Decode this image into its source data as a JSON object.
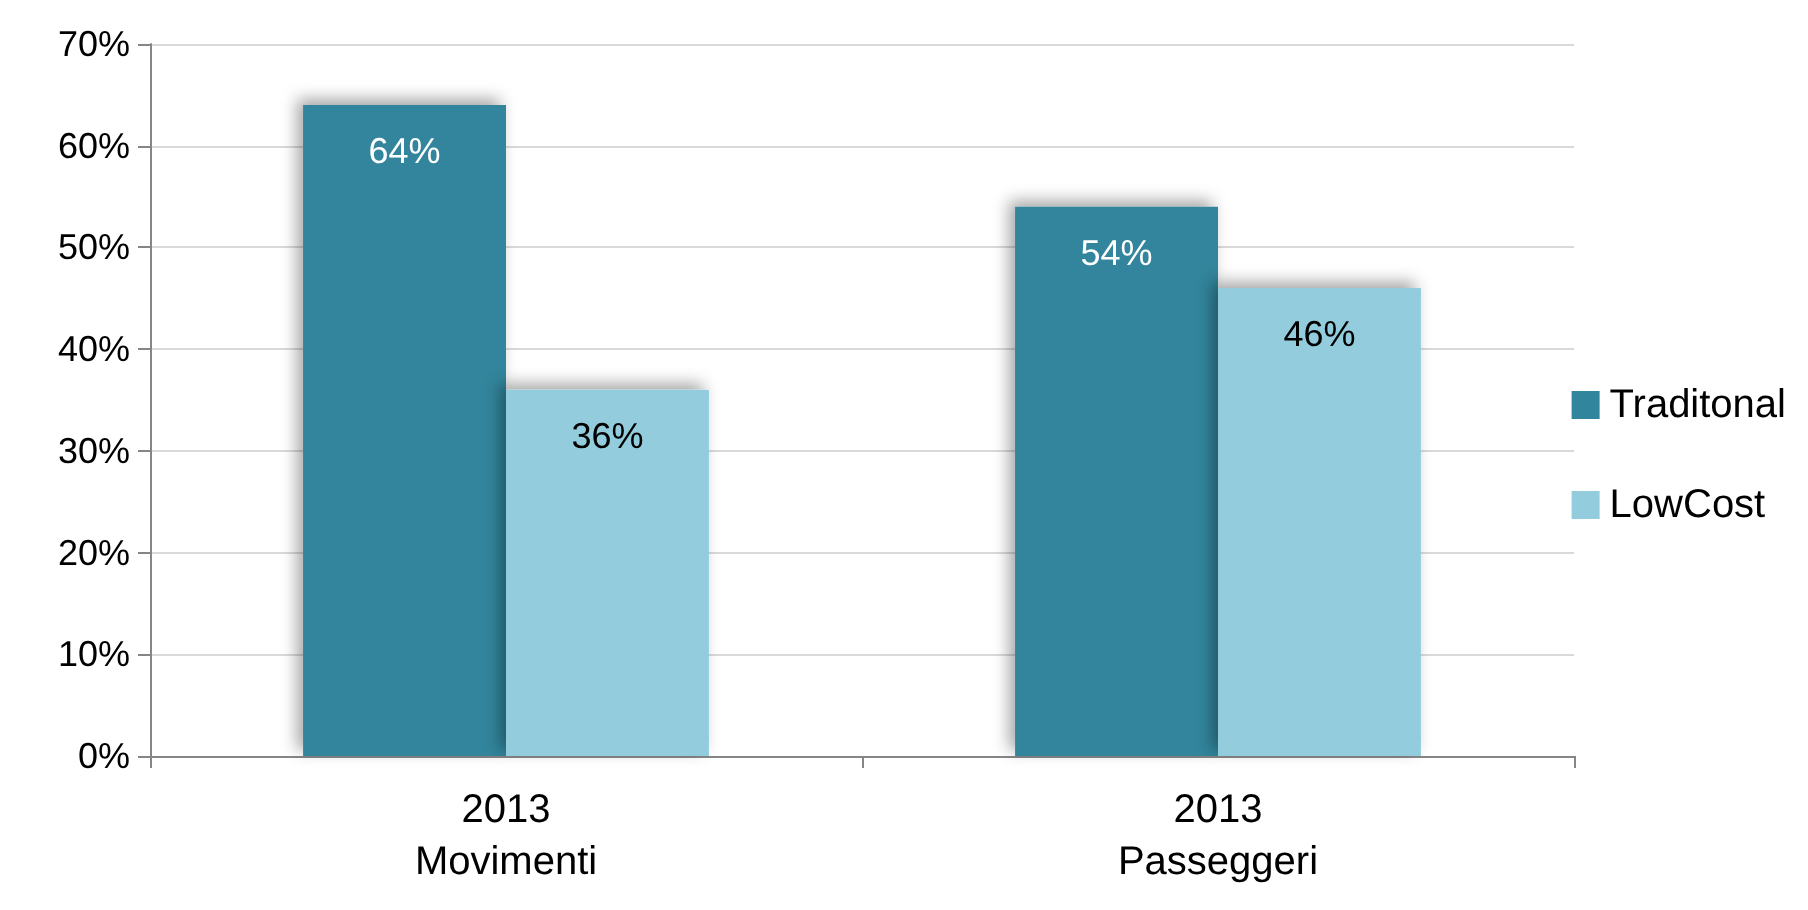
{
  "chart_data": {
    "type": "bar",
    "categories": [
      "2013\nMovimenti",
      "2013\nPasseggeri"
    ],
    "series": [
      {
        "name": "Traditonal",
        "color": "#31859c",
        "values": [
          64,
          54
        ],
        "value_labels": [
          "64%",
          "54%"
        ]
      },
      {
        "name": "LowCost",
        "color": "#93cddd",
        "values": [
          36,
          46
        ],
        "value_labels": [
          "36%",
          "46%"
        ]
      }
    ],
    "ylim": [
      0,
      70
    ],
    "yticks": [
      {
        "value": 0,
        "label": "0%"
      },
      {
        "value": 10,
        "label": "10%"
      },
      {
        "value": 20,
        "label": "20%"
      },
      {
        "value": 30,
        "label": "30%"
      },
      {
        "value": 40,
        "label": "40%"
      },
      {
        "value": 50,
        "label": "50%"
      },
      {
        "value": 60,
        "label": "60%"
      },
      {
        "value": 70,
        "label": "70%"
      }
    ],
    "grid": "y",
    "legend": "right"
  }
}
